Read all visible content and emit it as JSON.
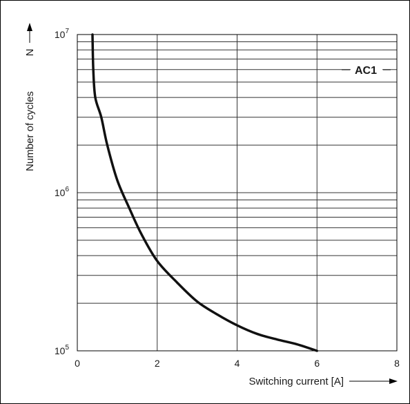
{
  "chart_data": {
    "type": "line",
    "title": "",
    "xlabel": "Switching current [A]",
    "ylabel": "Number of cycles",
    "ylabel_symbol": "N",
    "xlim": [
      0,
      8
    ],
    "ylim": [
      100000,
      10000000
    ],
    "yscale": "log",
    "grid": true,
    "x_ticks": [
      {
        "value": 0,
        "label": "0"
      },
      {
        "value": 2,
        "label": "2"
      },
      {
        "value": 4,
        "label": "4"
      },
      {
        "value": 6,
        "label": "6"
      },
      {
        "value": 8,
        "label": "8"
      }
    ],
    "y_ticks": [
      {
        "value": 100000,
        "base": "10",
        "exp": "5"
      },
      {
        "value": 1000000,
        "base": "10",
        "exp": "6"
      },
      {
        "value": 10000000,
        "base": "10",
        "exp": "7"
      }
    ],
    "series": [
      {
        "name": "AC1",
        "color": "#111111",
        "points": [
          {
            "x": 0.38,
            "y": 10000000
          },
          {
            "x": 0.4,
            "y": 6000000
          },
          {
            "x": 0.45,
            "y": 4000000
          },
          {
            "x": 0.6,
            "y": 3000000
          },
          {
            "x": 0.75,
            "y": 2000000
          },
          {
            "x": 1.0,
            "y": 1200000
          },
          {
            "x": 1.3,
            "y": 800000
          },
          {
            "x": 1.6,
            "y": 550000
          },
          {
            "x": 2.0,
            "y": 370000
          },
          {
            "x": 2.5,
            "y": 270000
          },
          {
            "x": 3.0,
            "y": 205000
          },
          {
            "x": 3.5,
            "y": 170000
          },
          {
            "x": 4.0,
            "y": 145000
          },
          {
            "x": 4.5,
            "y": 128000
          },
          {
            "x": 5.0,
            "y": 118000
          },
          {
            "x": 5.5,
            "y": 110000
          },
          {
            "x": 6.0,
            "y": 100000
          }
        ]
      }
    ]
  }
}
